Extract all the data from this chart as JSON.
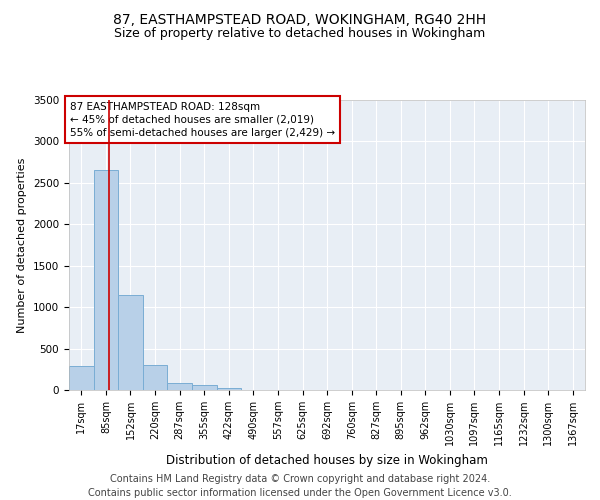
{
  "title1": "87, EASTHAMPSTEAD ROAD, WOKINGHAM, RG40 2HH",
  "title2": "Size of property relative to detached houses in Wokingham",
  "xlabel": "Distribution of detached houses by size in Wokingham",
  "ylabel": "Number of detached properties",
  "bar_color": "#b8d0e8",
  "bar_edge_color": "#7aadd4",
  "background_color": "#e8eef5",
  "grid_color": "#ffffff",
  "annotation_text": "87 EASTHAMPSTEAD ROAD: 128sqm\n← 45% of detached houses are smaller (2,019)\n55% of semi-detached houses are larger (2,429) →",
  "vline_x": 128,
  "vline_color": "#cc0000",
  "categories": [
    "17sqm",
    "85sqm",
    "152sqm",
    "220sqm",
    "287sqm",
    "355sqm",
    "422sqm",
    "490sqm",
    "557sqm",
    "625sqm",
    "692sqm",
    "760sqm",
    "827sqm",
    "895sqm",
    "962sqm",
    "1030sqm",
    "1097sqm",
    "1165sqm",
    "1232sqm",
    "1300sqm",
    "1367sqm"
  ],
  "bin_edges": [
    17,
    85,
    152,
    220,
    287,
    355,
    422,
    490,
    557,
    625,
    692,
    760,
    827,
    895,
    962,
    1030,
    1097,
    1165,
    1232,
    1300,
    1367
  ],
  "bar_heights": [
    290,
    2650,
    1150,
    300,
    90,
    55,
    30,
    0,
    0,
    0,
    0,
    0,
    0,
    0,
    0,
    0,
    0,
    0,
    0,
    0
  ],
  "ylim": [
    0,
    3500
  ],
  "yticks": [
    0,
    500,
    1000,
    1500,
    2000,
    2500,
    3000,
    3500
  ],
  "footer": "Contains HM Land Registry data © Crown copyright and database right 2024.\nContains public sector information licensed under the Open Government Licence v3.0.",
  "title1_fontsize": 10,
  "title2_fontsize": 9,
  "xlabel_fontsize": 8.5,
  "ylabel_fontsize": 8,
  "footer_fontsize": 7,
  "tick_fontsize": 7.5,
  "annot_fontsize": 7.5
}
